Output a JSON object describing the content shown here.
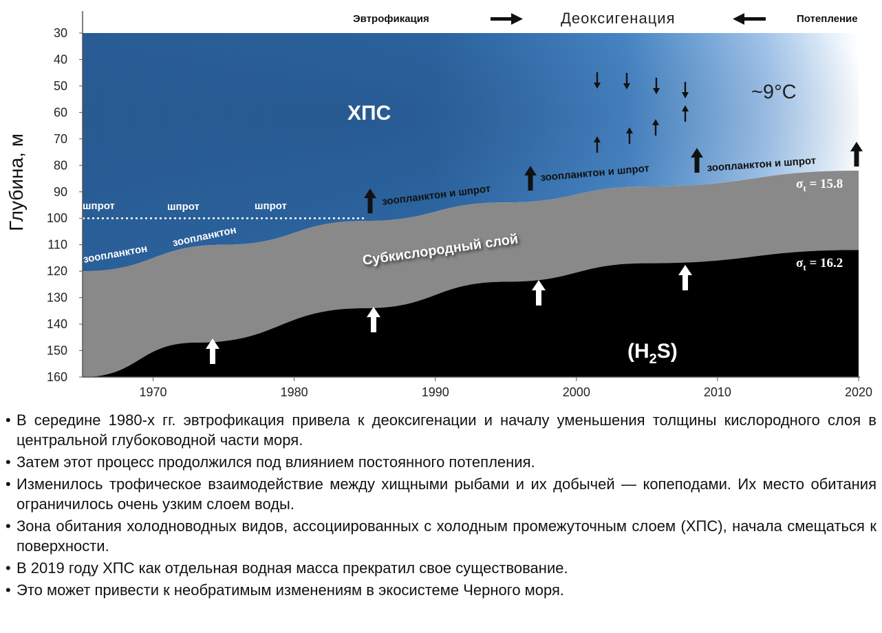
{
  "header": {
    "left_label": "Эвтрофикация",
    "center_label": "Деоксигенация",
    "right_label": "Потепление"
  },
  "chart_data": {
    "type": "area",
    "xlabel": "",
    "ylabel": "Глубина, м",
    "x_ticks": [
      "1970",
      "1980",
      "1990",
      "2000",
      "2010",
      "2020"
    ],
    "y_ticks": [
      "30",
      "40",
      "50",
      "60",
      "70",
      "80",
      "90",
      "100",
      "110",
      "120",
      "130",
      "140",
      "150",
      "160"
    ],
    "xlim": [
      1965,
      2020
    ],
    "ylim": [
      30,
      160
    ],
    "y_inverted": true,
    "series": [
      {
        "name": "σt = 15.8",
        "x": [
          1965,
          1975,
          1985,
          1995,
          2005,
          2020
        ],
        "y": [
          120,
          110,
          101,
          94,
          88,
          82
        ]
      },
      {
        "name": "σt = 16.2",
        "x": [
          1965,
          1973,
          1985,
          1995,
          2005,
          2020
        ],
        "y": [
          160,
          147,
          134,
          124,
          117,
          112
        ]
      }
    ],
    "dotted_line": {
      "x": [
        1965,
        1985
      ],
      "y": [
        100,
        100
      ]
    },
    "labels": {
      "cil": "ХПС",
      "temperature": "~9°C",
      "sprat": "шпрот",
      "zooplankton": "зоопланктон",
      "zoo_sprat": "зоопланктон и шпрот",
      "suboxic": "Субкислородный слой",
      "h2s_main": "(H",
      "h2s_sub": "2",
      "h2s_end": "S)",
      "sigma_symbol": "σ",
      "sigma_sub": "t",
      "sigma_top_value": " = 15.8",
      "sigma_bottom_value": " = 16.2"
    },
    "colors": {
      "cil_dark": "#2f6aa6",
      "cil_light": "#b9d4f0",
      "suboxic": "#8a8a8a",
      "anoxic": "#000000"
    }
  },
  "bullets": [
    "В середине 1980-х гг. эвтрофикация привела к деоксигенации и началу уменьшения толщины кислородного слоя в центральной глубоководной части моря.",
    "Затем этот процесс продолжился под влиянием постоянного потепления.",
    "Изменилось трофическое взаимодействие между хищными рыбами и их добычей — копеподами. Их место обитания ограничилось очень узким слоем воды.",
    "Зона обитания холодноводных видов, ассоциированных с холодным промежуточным слоем (ХПС), начала смещаться к поверхности.",
    "В 2019 году ХПС как отдельная водная масса прекратил свое существование.",
    "Это может привести к необратимым изменениям в экосистеме Черного моря."
  ]
}
